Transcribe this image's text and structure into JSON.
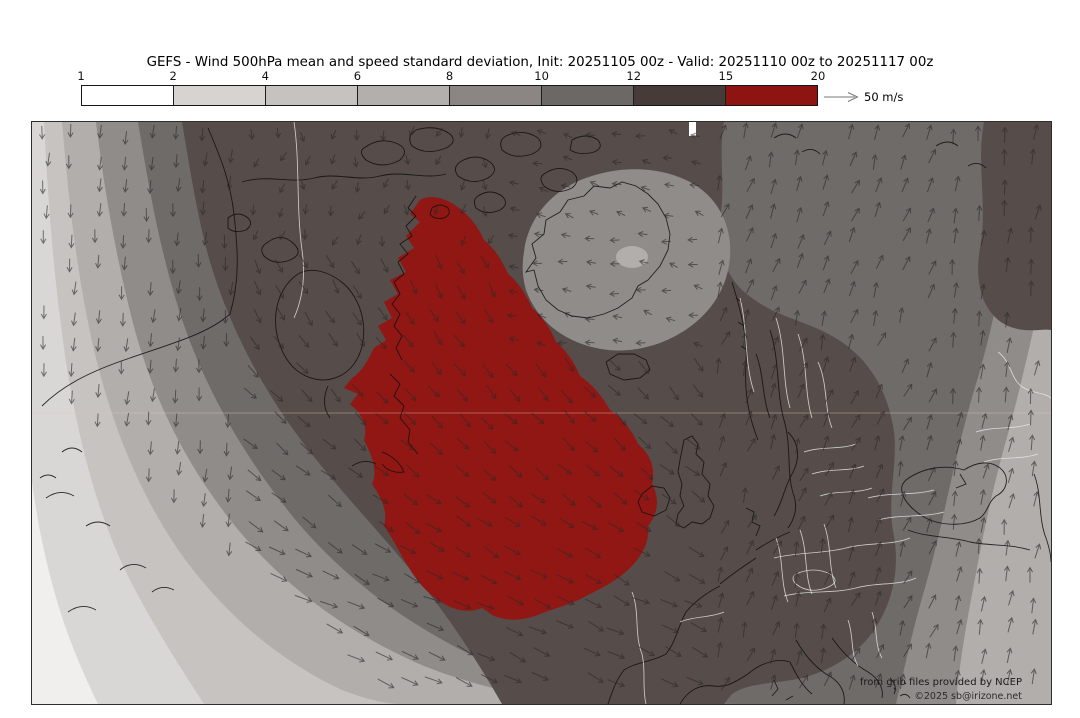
{
  "title": "GEFS - Wind 500hPa mean and speed standard deviation, Init: 20251105 00z - Valid: 20251110 00z to 20251117 00z",
  "colorbar": {
    "tick_labels": [
      "1",
      "2",
      "4",
      "6",
      "8",
      "10",
      "12",
      "15",
      "20"
    ],
    "segment_colors": [
      "#ffffff",
      "#d6d3d1",
      "#c5c2c0",
      "#b2afad",
      "#8b8583",
      "#6c6866",
      "#473b39",
      "#8e1411"
    ],
    "arrow_label": "50 m/s"
  },
  "map": {
    "band_colors": [
      "#f0efee",
      "#d9d7d5",
      "#c6c3c1",
      "#b1aeac",
      "#908c8a",
      "#6f6b69",
      "#564c49",
      "#901713"
    ],
    "attribution_line1": "from grib files provided by NCEP",
    "attribution_line2": "©2025 sb@irizone.net"
  },
  "chart_data": {
    "type": "heatmap",
    "title": "GEFS - Wind 500hPa mean and speed standard deviation",
    "init": "20251105 00z",
    "valid_from": "20251110 00z",
    "valid_to": "20251117 00z",
    "units": "m/s",
    "colorbar_levels": [
      1,
      2,
      4,
      6,
      8,
      10,
      12,
      15,
      20
    ],
    "reference_arrow": "50 m/s",
    "legend_position": "top",
    "description": "Filled contours of 500hPa wind speed standard deviation (m/s) over North America, North Atlantic and Europe; arrows show mean 500hPa wind, reference arrow 50 m/s; maximum (15-20 band, dark red) over Baffin Bay / Labrador Sea / central North Atlantic"
  }
}
